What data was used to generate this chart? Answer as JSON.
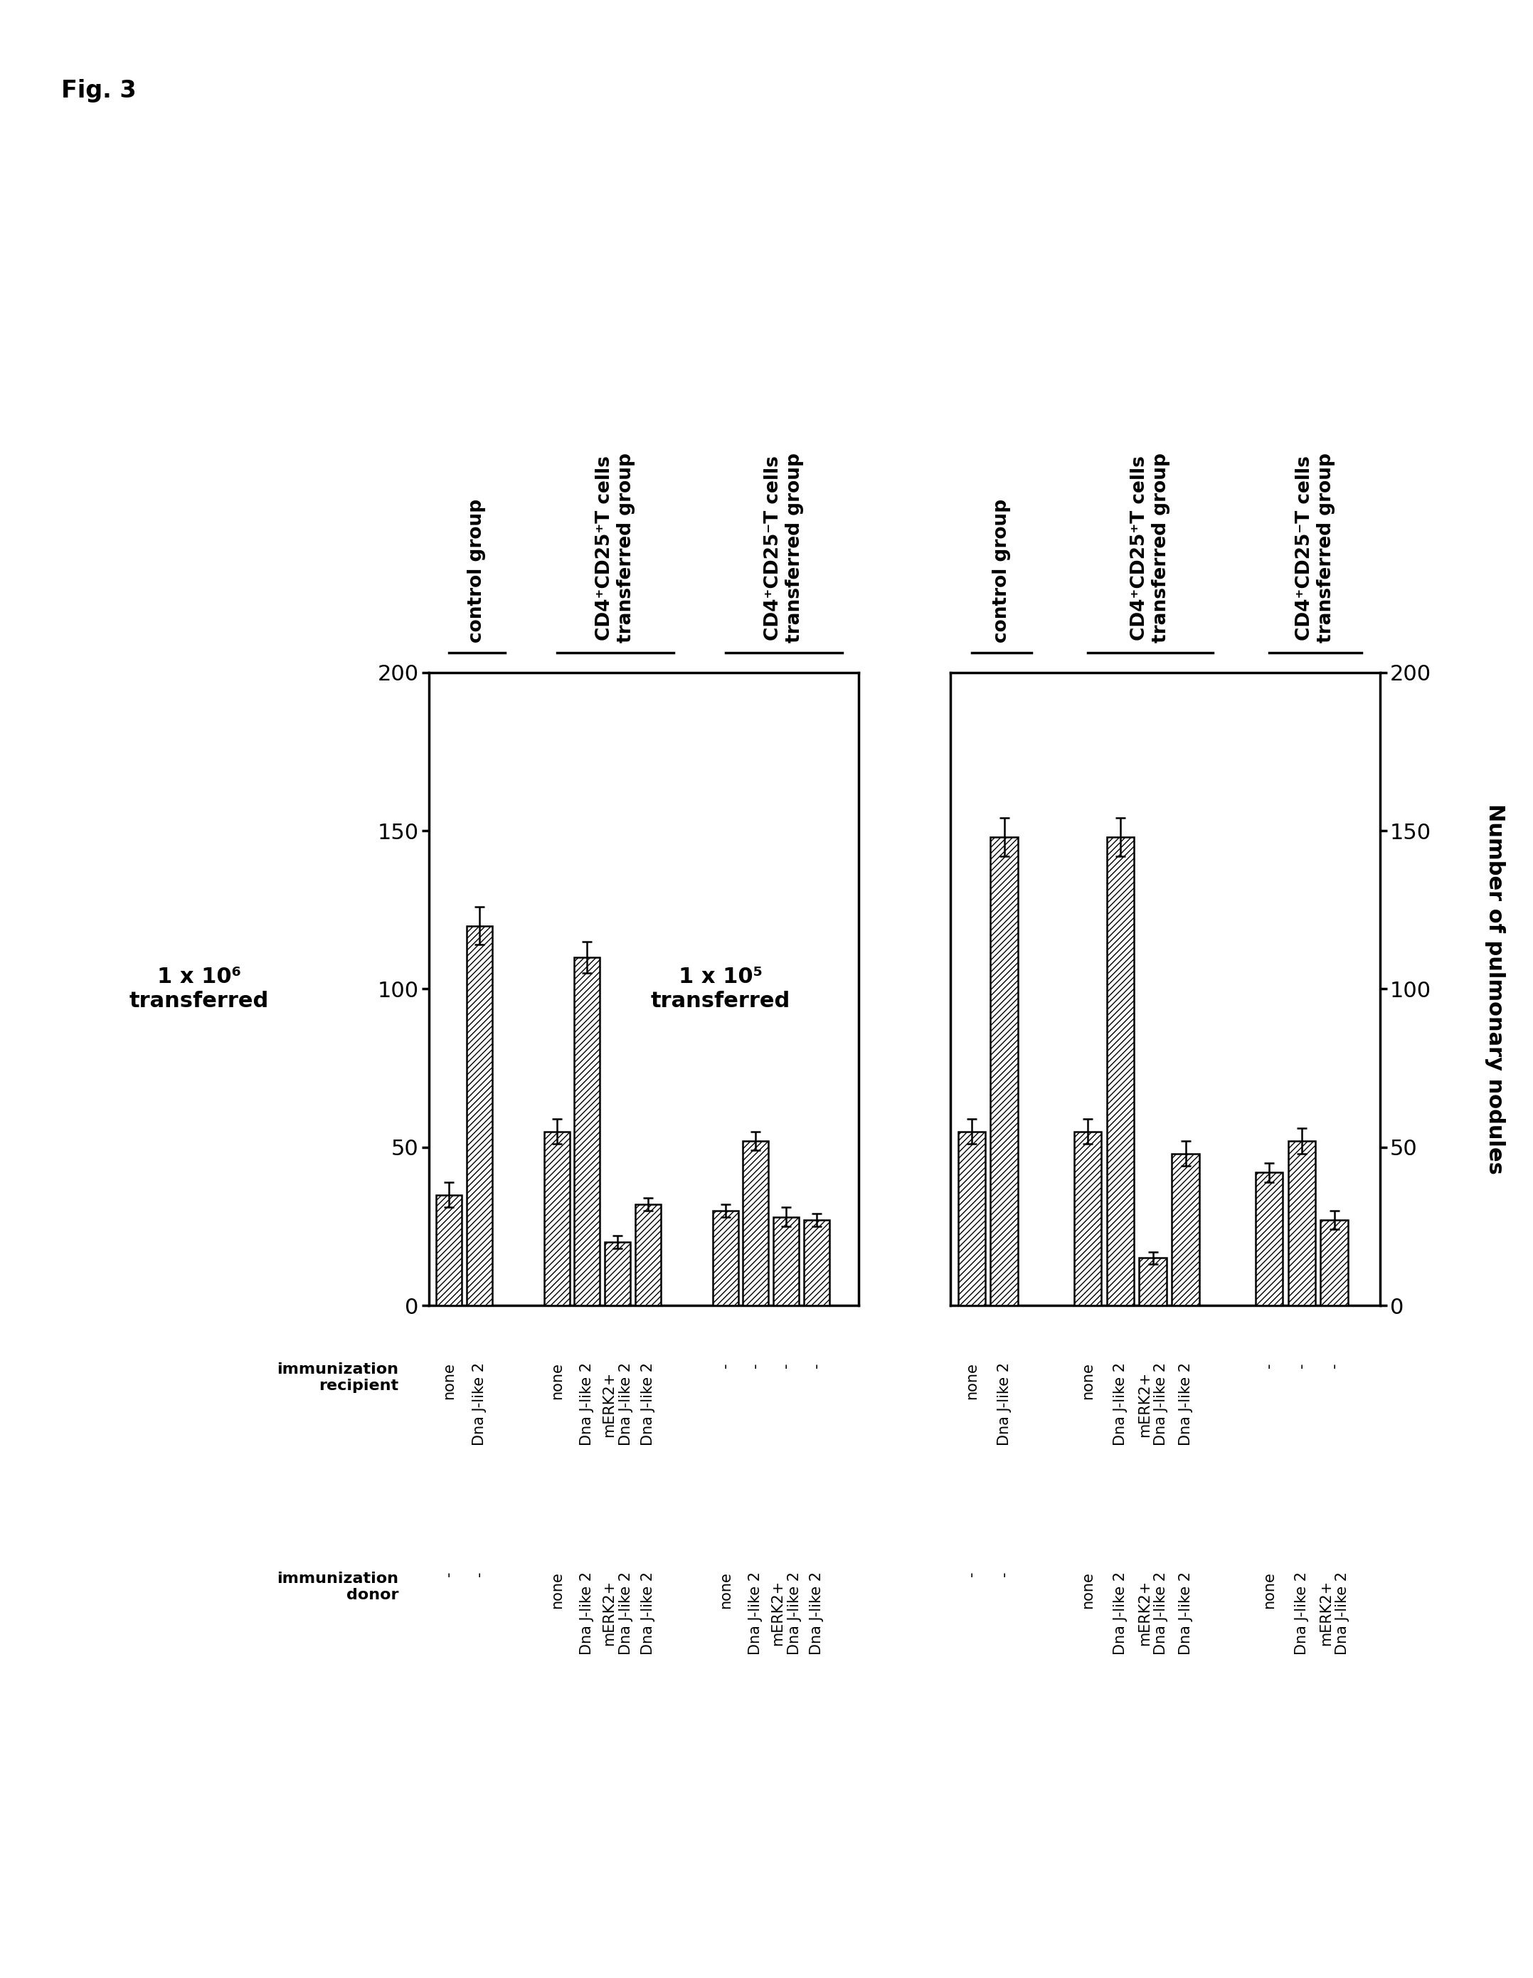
{
  "figure_label": "Fig. 3",
  "left_transfer_label": "1 x 10⁶\ntransferred",
  "right_transfer_label": "1 x 10⁵\ntransferred",
  "ylabel": "Number of pulmonary nodules",
  "ylim": [
    0,
    200
  ],
  "yticks": [
    0,
    50,
    100,
    150,
    200
  ],
  "group_label_pos": [
    "control group",
    "CD4⁺CD25⁺T cells\ntransferred group",
    "CD4⁺CD25⁻T cells\ntransferred group"
  ],
  "left_groups": [
    {
      "group_name": "control",
      "bars": [
        {
          "value": 35,
          "error": 4
        },
        {
          "value": 120,
          "error": 6
        }
      ]
    },
    {
      "group_name": "CD4+CD25+",
      "bars": [
        {
          "value": 55,
          "error": 4
        },
        {
          "value": 110,
          "error": 5
        },
        {
          "value": 20,
          "error": 2
        },
        {
          "value": 32,
          "error": 2
        }
      ]
    },
    {
      "group_name": "CD4+CD25-",
      "bars": [
        {
          "value": 30,
          "error": 2
        },
        {
          "value": 52,
          "error": 3
        },
        {
          "value": 28,
          "error": 3
        },
        {
          "value": 27,
          "error": 2
        }
      ]
    }
  ],
  "right_groups": [
    {
      "group_name": "control",
      "bars": [
        {
          "value": 55,
          "error": 4
        },
        {
          "value": 148,
          "error": 6
        }
      ]
    },
    {
      "group_name": "CD4+CD25+",
      "bars": [
        {
          "value": 55,
          "error": 4
        },
        {
          "value": 148,
          "error": 6
        },
        {
          "value": 15,
          "error": 2
        },
        {
          "value": 48,
          "error": 4
        }
      ]
    },
    {
      "group_name": "CD4+CD25-",
      "bars": [
        {
          "value": 42,
          "error": 3
        },
        {
          "value": 52,
          "error": 4
        },
        {
          "value": 27,
          "error": 3
        }
      ]
    }
  ],
  "left_recip_labels": [
    "none",
    "Dna J-like 2",
    "none",
    "Dna J-like 2",
    "mERK2+\nDna J-like 2",
    "Dna J-like 2",
    "-",
    "-",
    "-",
    "-"
  ],
  "left_donor_labels": [
    "-",
    "-",
    "none",
    "Dna J-like 2",
    "mERK2+\nDna J-like 2",
    "Dna J-like 2",
    "none",
    "Dna J-like 2",
    "mERK2+\nDna J-like 2",
    "Dna J-like 2"
  ],
  "right_recip_labels": [
    "none",
    "Dna J-like 2",
    "none",
    "Dna J-like 2",
    "mERK2+\nDna J-like 2",
    "Dna J-like 2",
    "-",
    "-",
    "-"
  ],
  "right_donor_labels": [
    "-",
    "-",
    "none",
    "Dna J-like 2",
    "mERK2+\nDna J-like 2",
    "Dna J-like 2",
    "none",
    "Dna J-like 2",
    "mERK2+\nDna J-like 2"
  ],
  "background_color": "#ffffff",
  "bar_edgecolor": "#000000",
  "hatch": "////"
}
